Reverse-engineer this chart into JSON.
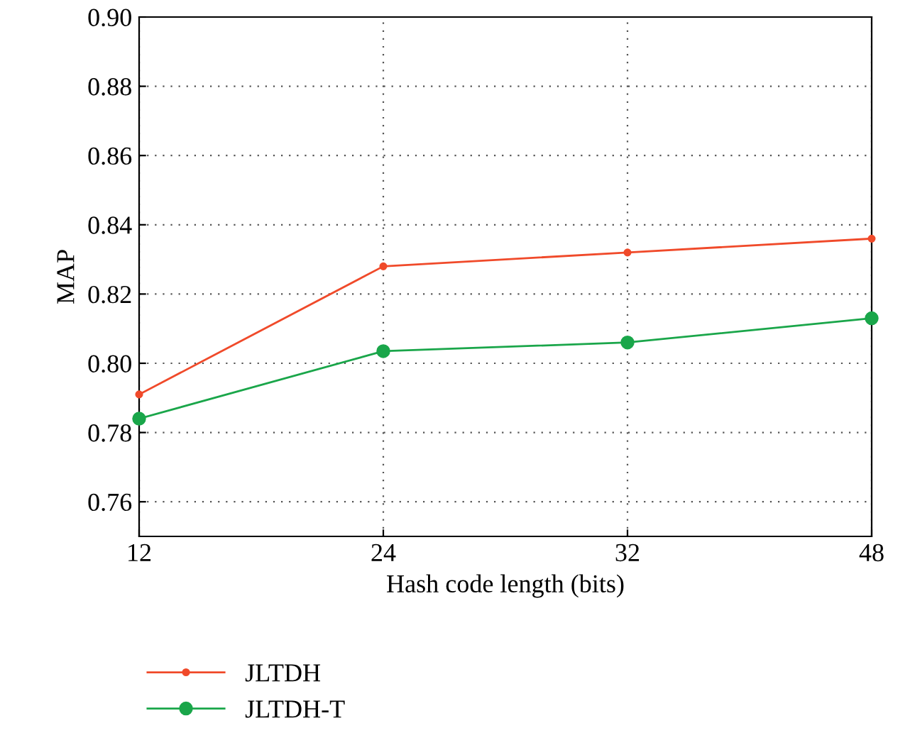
{
  "chart_data": {
    "type": "line",
    "xlabel": "Hash code length (bits)",
    "ylabel": "MAP",
    "categories": [
      "12",
      "24",
      "32",
      "48"
    ],
    "series": [
      {
        "name": "JLTDH",
        "color": "#f04a2a",
        "values": [
          0.791,
          0.828,
          0.832,
          0.836
        ],
        "marker": "circle"
      },
      {
        "name": "JLTDH-T",
        "color": "#1aa64a",
        "values": [
          0.784,
          0.8035,
          0.806,
          0.813
        ],
        "marker": "circle"
      }
    ],
    "ylim": [
      0.75,
      0.9
    ],
    "yticks": [
      0.76,
      0.78,
      {
        "value": 0.8,
        "label": "0.80"
      },
      0.82,
      0.84,
      0.86,
      0.88,
      {
        "value": 0.9,
        "label": "0.90"
      }
    ],
    "grid": true,
    "legend": "bottom",
    "line_style": "solid"
  }
}
